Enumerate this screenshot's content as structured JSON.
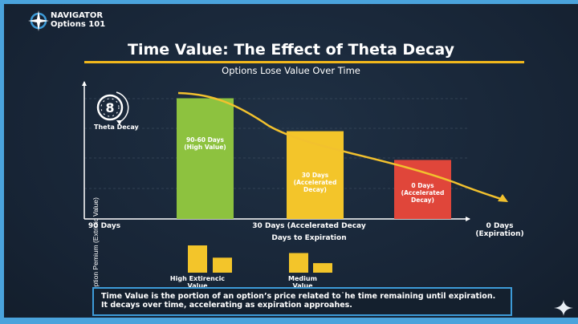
{
  "brand": {
    "name": "NAVIGATOR",
    "tagline": "Options 101",
    "icon": "compass-icon"
  },
  "title": "Time Value: The Effect of Theta Decay",
  "subtitle": "Options Lose Value Over Time",
  "theta_badge": {
    "icon": "stopwatch-theta-icon",
    "label": "Theta Decay"
  },
  "chart_data": {
    "type": "bar",
    "ylabel": "Option Pemium (Extrinic Value)",
    "xlabel": "Days to Expiration",
    "x_ticks": [
      "90 Days",
      "30 Days (Accelerated Decay",
      "0 Days\n(Expiration)"
    ],
    "categories": [
      "90-60 Days (High Value)",
      "30 Days (Accelerated Decay)",
      "0 Days (Accelerated Decay)"
    ],
    "bar_labels": [
      [
        "90-60 Days",
        "(High Value)"
      ],
      [
        "30 Days",
        "(Accelerated",
        "Decay)"
      ],
      [
        "0 Days",
        "(Accelerated",
        "Decay)"
      ]
    ],
    "values": [
      88,
      64,
      43
    ],
    "ylim": [
      0,
      100
    ],
    "colors": [
      "#8dc23f",
      "#f3c52a",
      "#e0463a"
    ],
    "trend_color": "#f2c12e",
    "grid": true
  },
  "legend": [
    {
      "label": "High Extirencic Value",
      "values": [
        100,
        55
      ]
    },
    {
      "label": "Medium Value",
      "values": [
        72,
        35
      ]
    }
  ],
  "legend_color": "#f3c52a",
  "info_text": "Time Value is the portion of an option’s price related to˙he time remaining until expiration. It decays over time, accelerating as expiration approahes.",
  "corner_icon": "sparkle-icon"
}
